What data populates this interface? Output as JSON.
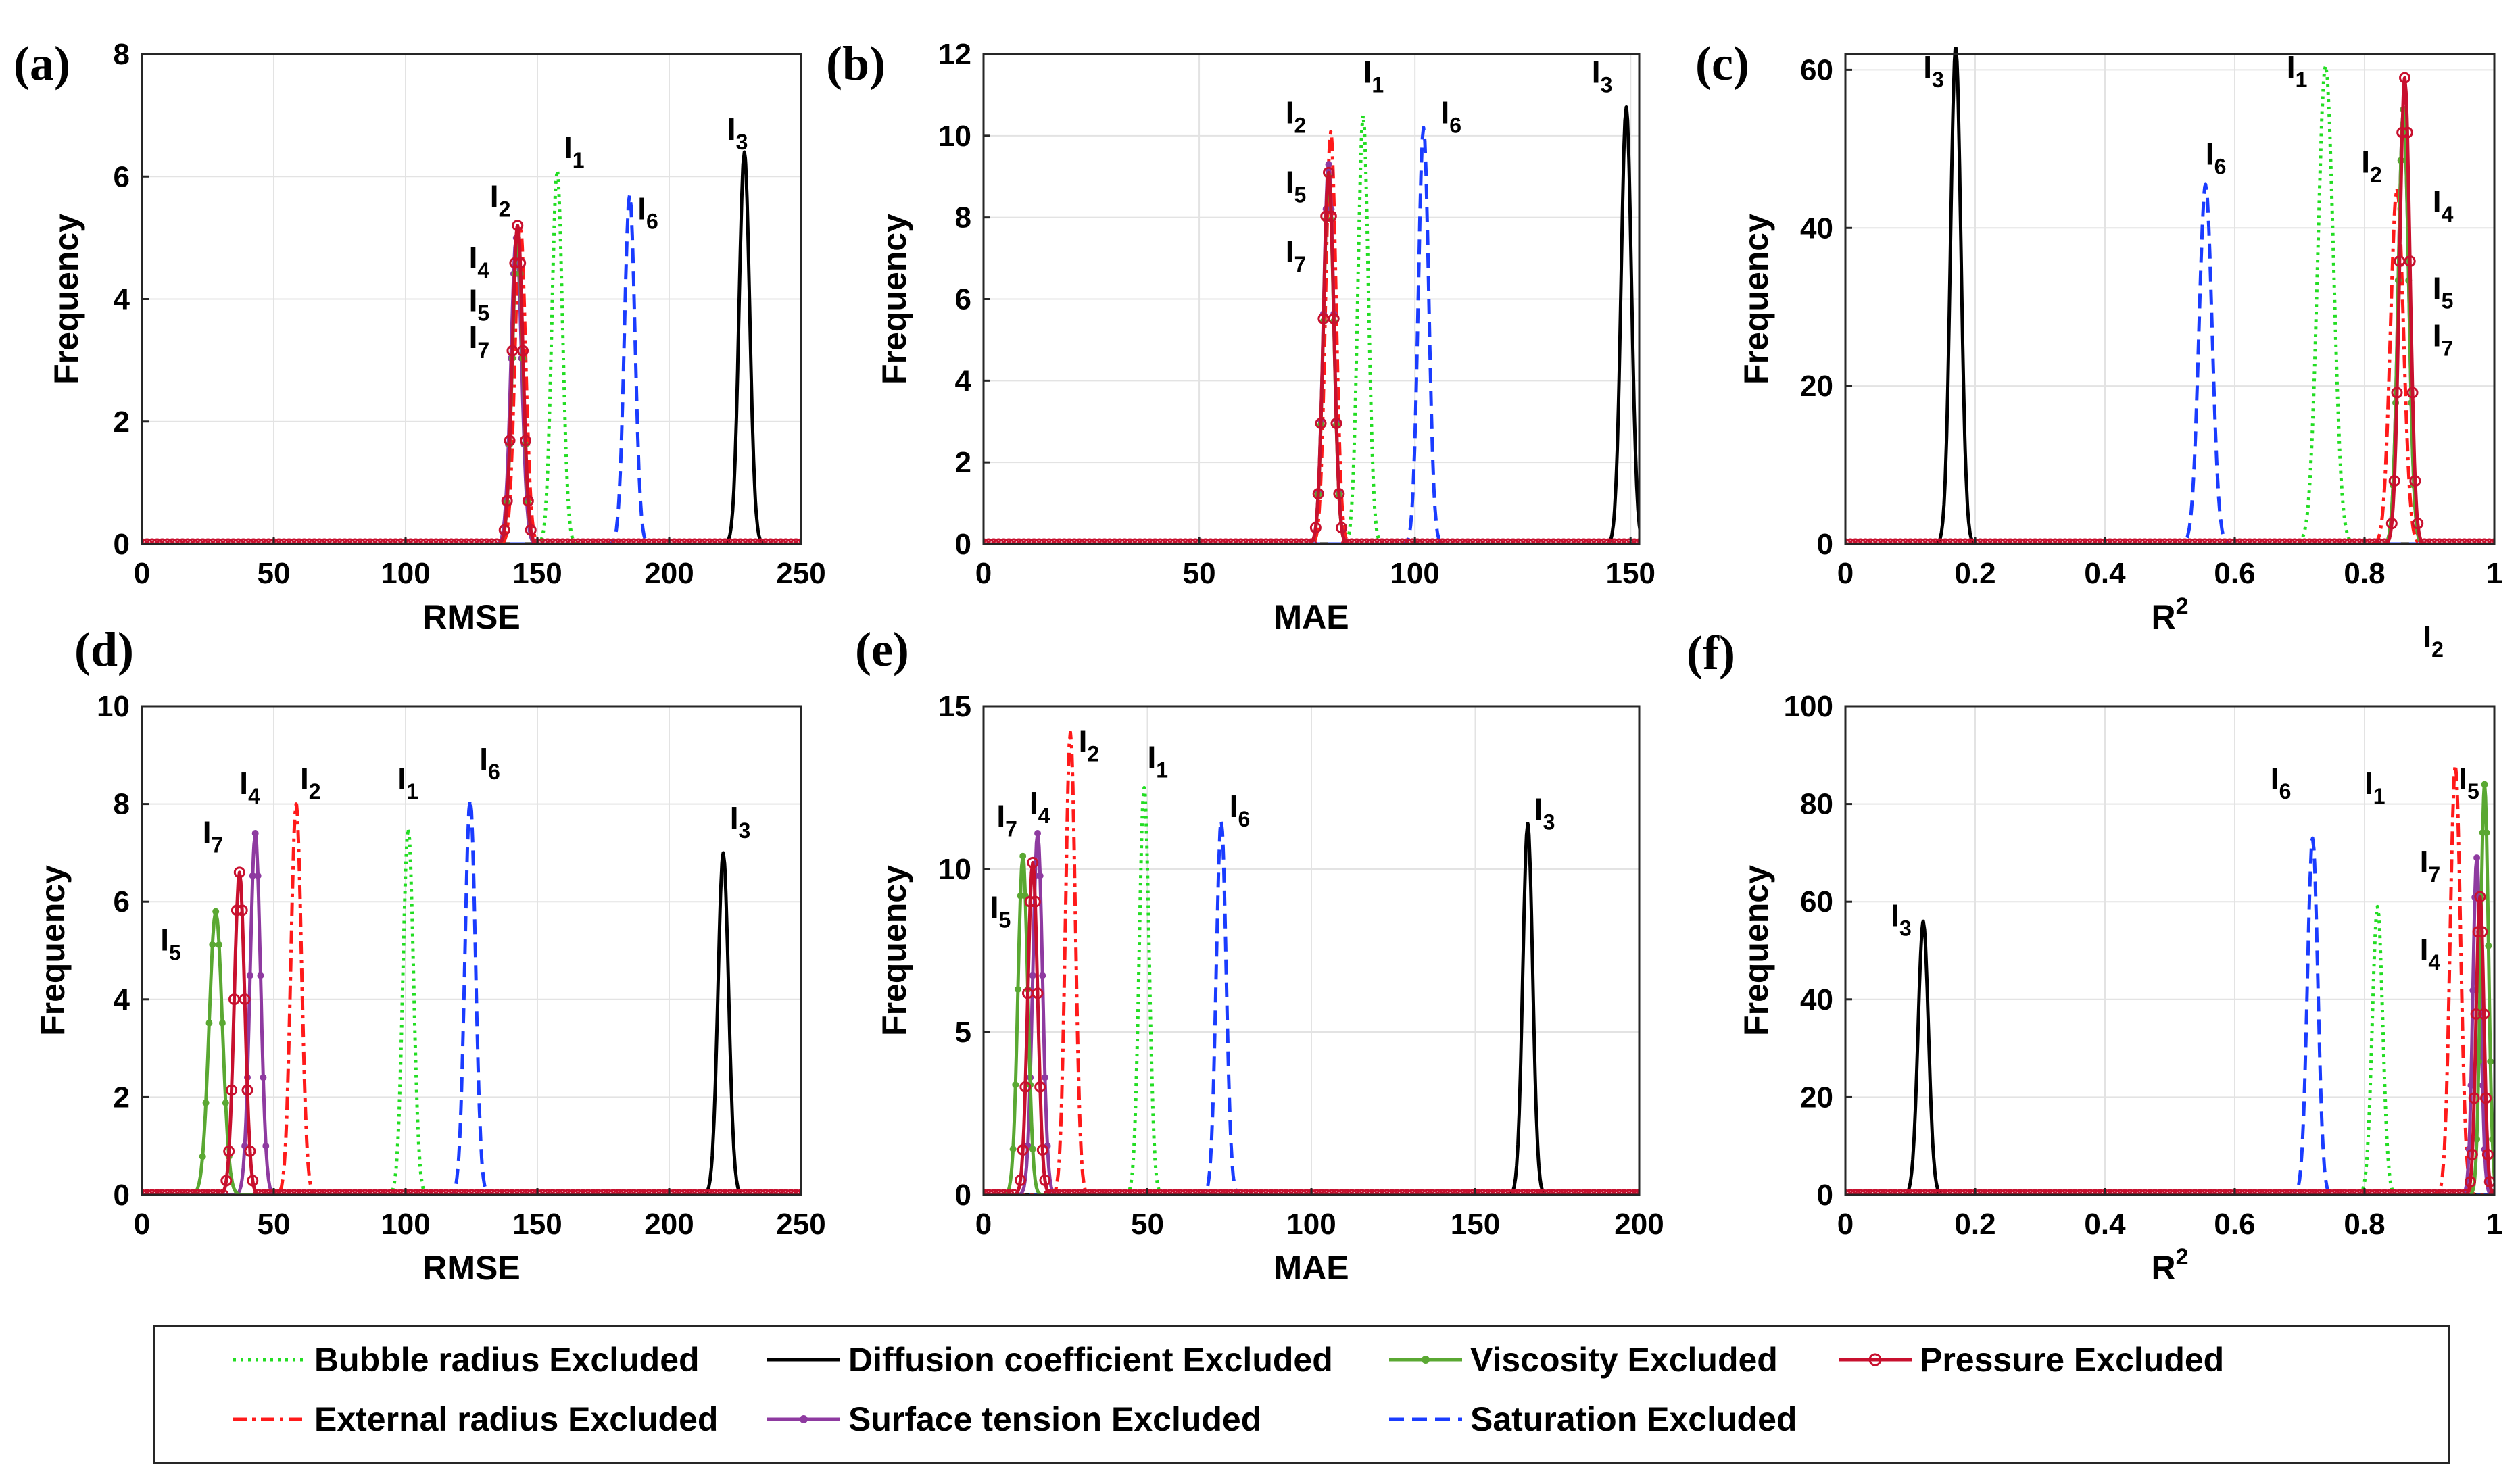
{
  "figure": {
    "legend_items": [
      {
        "label": "Bubble radius Excluded",
        "color": "#22dd22",
        "style": "dotted"
      },
      {
        "label": "Diffusion coefficient Excluded",
        "color": "#000000",
        "style": "solid"
      },
      {
        "label": "Viscosity Excluded",
        "color": "#5aa832",
        "style": "solid-marker"
      },
      {
        "label": "Pressure Excluded",
        "color": "#c8102e",
        "style": "solid-circle"
      },
      {
        "label": "External radius Excluded",
        "color": "#ff1a1a",
        "style": "dashdot"
      },
      {
        "label": "Surface tension Excluded",
        "color": "#8e3aa0",
        "style": "solid-marker"
      },
      {
        "label": "Saturation Excluded",
        "color": "#1a3cff",
        "style": "dashed"
      }
    ]
  },
  "chart_data": [
    {
      "panel": "(a)",
      "type": "line",
      "xlabel": "RMSE",
      "ylabel": "Frequency",
      "xlim": [
        0,
        250
      ],
      "ylim": [
        0,
        8
      ],
      "xticks": [
        0,
        50,
        100,
        150,
        200,
        250
      ],
      "yticks": [
        0,
        2,
        4,
        6,
        8
      ],
      "series": [
        {
          "name": "Bubble radius Excluded",
          "center": 157.5,
          "width": 2,
          "peak": 6.1,
          "sub": "1"
        },
        {
          "name": "Diffusion coefficient Excluded",
          "center": 228.5,
          "width": 2,
          "peak": 6.4,
          "sub": "3"
        },
        {
          "name": "Saturation Excluded",
          "center": 185,
          "width": 2,
          "peak": 5.7,
          "sub": "6"
        },
        {
          "name": "External radius Excluded",
          "center": 143.5,
          "width": 2,
          "peak": 5.2,
          "sub": "2"
        },
        {
          "name": "Surface tension Excluded",
          "center": 142,
          "width": 2,
          "peak": 5.0,
          "sub": "4"
        },
        {
          "name": "Viscosity Excluded",
          "center": 142.5,
          "width": 2,
          "peak": 5.0,
          "sub": "5"
        },
        {
          "name": "Pressure Excluded",
          "center": 142.5,
          "width": 2,
          "peak": 5.2,
          "sub": "7"
        }
      ],
      "annotations": [
        {
          "text": "I",
          "sub": "1",
          "x": 160,
          "y": 6.3
        },
        {
          "text": "I",
          "sub": "2",
          "x": 132,
          "y": 5.5
        },
        {
          "text": "I",
          "sub": "3",
          "x": 222,
          "y": 6.6
        },
        {
          "text": "I",
          "sub": "4",
          "x": 124,
          "y": 4.5
        },
        {
          "text": "I",
          "sub": "5",
          "x": 124,
          "y": 3.8
        },
        {
          "text": "I",
          "sub": "6",
          "x": 188,
          "y": 5.3
        },
        {
          "text": "I",
          "sub": "7",
          "x": 124,
          "y": 3.2
        }
      ]
    },
    {
      "panel": "(b)",
      "type": "line",
      "xlabel": "MAE",
      "ylabel": "Frequency",
      "xlim": [
        0,
        152
      ],
      "ylim": [
        0,
        12
      ],
      "xticks": [
        0,
        50,
        100,
        150
      ],
      "yticks": [
        0,
        2,
        4,
        6,
        8,
        10,
        12
      ],
      "series": [
        {
          "name": "Bubble radius Excluded",
          "center": 88,
          "width": 1.2,
          "peak": 10.5,
          "sub": "1"
        },
        {
          "name": "Diffusion coefficient Excluded",
          "center": 149,
          "width": 1.2,
          "peak": 10.7,
          "sub": "3"
        },
        {
          "name": "Saturation Excluded",
          "center": 102,
          "width": 1.2,
          "peak": 10.2,
          "sub": "6"
        },
        {
          "name": "External radius Excluded",
          "center": 80.5,
          "width": 1.2,
          "peak": 10.1,
          "sub": "2"
        },
        {
          "name": "Surface tension Excluded",
          "center": 80,
          "width": 1.2,
          "peak": 9.3,
          "sub": "4"
        },
        {
          "name": "Viscosity Excluded",
          "center": 80,
          "width": 1.2,
          "peak": 9.0,
          "sub": "5"
        },
        {
          "name": "Pressure Excluded",
          "center": 80,
          "width": 1.2,
          "peak": 9.1,
          "sub": "7"
        }
      ],
      "annotations": [
        {
          "text": "I",
          "sub": "1",
          "x": 88,
          "y": 11.3
        },
        {
          "text": "I",
          "sub": "2",
          "x": 70,
          "y": 10.3
        },
        {
          "text": "I",
          "sub": "3",
          "x": 141,
          "y": 11.3
        },
        {
          "text": "I",
          "sub": "5",
          "x": 70,
          "y": 8.6
        },
        {
          "text": "I",
          "sub": "6",
          "x": 106,
          "y": 10.3
        },
        {
          "text": "I",
          "sub": "7",
          "x": 70,
          "y": 6.9
        }
      ]
    },
    {
      "panel": "(c)",
      "type": "line",
      "xlabel": "R",
      "xlabel_sup": "2",
      "ylabel": "Frequency",
      "xlim": [
        0,
        1
      ],
      "ylim": [
        0,
        62
      ],
      "xticks": [
        0,
        0.2,
        0.4,
        0.6,
        0.8,
        1
      ],
      "yticks": [
        0,
        20,
        40,
        60
      ],
      "series": [
        {
          "name": "Bubble radius Excluded",
          "center": 0.74,
          "width": 0.012,
          "peak": 60.5,
          "sub": "1"
        },
        {
          "name": "Diffusion coefficient Excluded",
          "center": 0.17,
          "width": 0.008,
          "peak": 63,
          "sub": "3"
        },
        {
          "name": "Saturation Excluded",
          "center": 0.555,
          "width": 0.01,
          "peak": 45.5,
          "sub": "6"
        },
        {
          "name": "External radius Excluded",
          "center": 0.85,
          "width": 0.01,
          "peak": 45,
          "sub": "2"
        },
        {
          "name": "Surface tension Excluded",
          "center": 0.86,
          "width": 0.008,
          "peak": 55,
          "sub": "4"
        },
        {
          "name": "Viscosity Excluded",
          "center": 0.86,
          "width": 0.008,
          "peak": 55,
          "sub": "5"
        },
        {
          "name": "Pressure Excluded",
          "center": 0.862,
          "width": 0.008,
          "peak": 59,
          "sub": "7"
        }
      ],
      "annotations": [
        {
          "text": "I",
          "sub": "3",
          "x": 0.12,
          "y": 59
        },
        {
          "text": "I",
          "sub": "1",
          "x": 0.68,
          "y": 59
        },
        {
          "text": "I",
          "sub": "6",
          "x": 0.555,
          "y": 48
        },
        {
          "text": "I",
          "sub": "2",
          "x": 0.795,
          "y": 47
        },
        {
          "text": "I",
          "sub": "4",
          "x": 0.905,
          "y": 42
        },
        {
          "text": "I",
          "sub": "5",
          "x": 0.905,
          "y": 31
        },
        {
          "text": "I",
          "sub": "7",
          "x": 0.905,
          "y": 25
        }
      ]
    },
    {
      "panel": "(d)",
      "type": "line",
      "xlabel": "RMSE",
      "ylabel": "Frequency",
      "xlim": [
        0,
        250
      ],
      "ylim": [
        0,
        10
      ],
      "xticks": [
        0,
        50,
        100,
        150,
        200,
        250
      ],
      "yticks": [
        0,
        2,
        4,
        6,
        8,
        10
      ],
      "series": [
        {
          "name": "Bubble radius Excluded",
          "center": 101,
          "width": 2,
          "peak": 7.5,
          "sub": "1"
        },
        {
          "name": "Diffusion coefficient Excluded",
          "center": 220.5,
          "width": 2,
          "peak": 7.0,
          "sub": "3"
        },
        {
          "name": "Saturation Excluded",
          "center": 124.5,
          "width": 2,
          "peak": 8.1,
          "sub": "6"
        },
        {
          "name": "External radius Excluded",
          "center": 58.5,
          "width": 2,
          "peak": 8.0,
          "sub": "2"
        },
        {
          "name": "Surface tension Excluded",
          "center": 43,
          "width": 2,
          "peak": 7.4,
          "sub": "4"
        },
        {
          "name": "Viscosity Excluded",
          "center": 28,
          "width": 2.5,
          "peak": 5.8,
          "sub": "5"
        },
        {
          "name": "Pressure Excluded",
          "center": 37,
          "width": 2,
          "peak": 6.6,
          "sub": "7"
        }
      ],
      "annotations": [
        {
          "text": "I",
          "sub": "1",
          "x": 97,
          "y": 8.3
        },
        {
          "text": "I",
          "sub": "2",
          "x": 60,
          "y": 8.3
        },
        {
          "text": "I",
          "sub": "3",
          "x": 223,
          "y": 7.5
        },
        {
          "text": "I",
          "sub": "4",
          "x": 37,
          "y": 8.2
        },
        {
          "text": "I",
          "sub": "5",
          "x": 7,
          "y": 5.0
        },
        {
          "text": "I",
          "sub": "6",
          "x": 128,
          "y": 8.7
        },
        {
          "text": "I",
          "sub": "7",
          "x": 23,
          "y": 7.2
        }
      ]
    },
    {
      "panel": "(e)",
      "type": "line",
      "xlabel": "MAE",
      "ylabel": "Frequency",
      "xlim": [
        0,
        200
      ],
      "ylim": [
        0,
        15
      ],
      "xticks": [
        0,
        50,
        100,
        150,
        200
      ],
      "yticks": [
        0,
        5,
        10,
        15
      ],
      "series": [
        {
          "name": "Bubble radius Excluded",
          "center": 49,
          "width": 1.5,
          "peak": 12.5,
          "sub": "1"
        },
        {
          "name": "Diffusion coefficient Excluded",
          "center": 166,
          "width": 1.5,
          "peak": 11.4,
          "sub": "3"
        },
        {
          "name": "Saturation Excluded",
          "center": 72.5,
          "width": 1.5,
          "peak": 11.5,
          "sub": "6"
        },
        {
          "name": "External radius Excluded",
          "center": 26.5,
          "width": 1.5,
          "peak": 14.2,
          "sub": "2"
        },
        {
          "name": "Surface tension Excluded",
          "center": 16.5,
          "width": 1.5,
          "peak": 11.1,
          "sub": "4"
        },
        {
          "name": "Viscosity Excluded",
          "center": 12,
          "width": 1.5,
          "peak": 10.4,
          "sub": "5"
        },
        {
          "name": "Pressure Excluded",
          "center": 15,
          "width": 1.5,
          "peak": 10.2,
          "sub": "7"
        }
      ],
      "annotations": [
        {
          "text": "I",
          "sub": "1",
          "x": 50,
          "y": 13.1
        },
        {
          "text": "I",
          "sub": "2",
          "x": 29,
          "y": 13.6
        },
        {
          "text": "I",
          "sub": "3",
          "x": 168,
          "y": 11.5
        },
        {
          "text": "I",
          "sub": "4",
          "x": 14,
          "y": 11.7
        },
        {
          "text": "I",
          "sub": "5",
          "x": 2,
          "y": 8.5
        },
        {
          "text": "I",
          "sub": "6",
          "x": 75,
          "y": 11.6
        },
        {
          "text": "I",
          "sub": "7",
          "x": 4,
          "y": 11.3
        }
      ]
    },
    {
      "panel": "(f)",
      "type": "line",
      "xlabel": "R",
      "xlabel_sup": "2",
      "ylabel": "Frequency",
      "xlim": [
        0,
        1
      ],
      "ylim": [
        0,
        100
      ],
      "xticks": [
        0,
        0.2,
        0.4,
        0.6,
        0.8,
        1
      ],
      "yticks": [
        0,
        20,
        40,
        60,
        80,
        100
      ],
      "series": [
        {
          "name": "Bubble radius Excluded",
          "center": 0.82,
          "width": 0.008,
          "peak": 59,
          "sub": "1"
        },
        {
          "name": "Diffusion coefficient Excluded",
          "center": 0.12,
          "width": 0.008,
          "peak": 56,
          "sub": "3"
        },
        {
          "name": "Saturation Excluded",
          "center": 0.72,
          "width": 0.008,
          "peak": 73,
          "sub": "6"
        },
        {
          "name": "External radius Excluded",
          "center": 0.94,
          "width": 0.008,
          "peak": 88,
          "sub": "2"
        },
        {
          "name": "Surface tension Excluded",
          "center": 0.973,
          "width": 0.006,
          "peak": 69,
          "sub": "4"
        },
        {
          "name": "Viscosity Excluded",
          "center": 0.985,
          "width": 0.006,
          "peak": 84,
          "sub": "5"
        },
        {
          "name": "Pressure Excluded",
          "center": 0.978,
          "width": 0.006,
          "peak": 61,
          "sub": "7"
        }
      ],
      "annotations": [
        {
          "text": "I",
          "sub": "1",
          "x": 0.8,
          "y": 82
        },
        {
          "text": "I",
          "sub": "2",
          "x": 0.89,
          "y": 112
        },
        {
          "text": "I",
          "sub": "3",
          "x": 0.07,
          "y": 55
        },
        {
          "text": "I",
          "sub": "4",
          "x": 0.885,
          "y": 48
        },
        {
          "text": "I",
          "sub": "5",
          "x": 0.945,
          "y": 83
        },
        {
          "text": "I",
          "sub": "6",
          "x": 0.655,
          "y": 83
        },
        {
          "text": "I",
          "sub": "7",
          "x": 0.885,
          "y": 66
        }
      ]
    }
  ]
}
